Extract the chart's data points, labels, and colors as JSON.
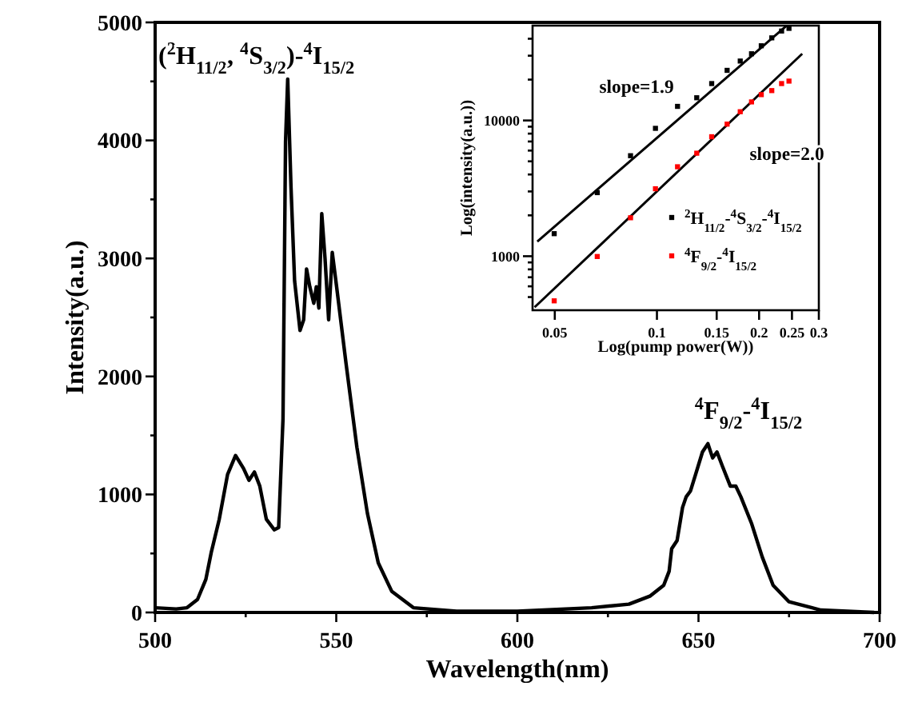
{
  "chart_data": [
    {
      "type": "line",
      "xlabel": "Wavelength(nm)",
      "ylabel": "Intensity(a.u.)",
      "xlim": [
        500,
        700
      ],
      "ylim": [
        0,
        5000
      ],
      "xticks": [
        500,
        {
          "value": 525,
          "label": null
        },
        550,
        {
          "value": 575,
          "label": null
        },
        600,
        {
          "value": 625,
          "label": null
        },
        650,
        {
          "value": 675,
          "label": null
        },
        700
      ],
      "yticks": [
        0,
        {
          "value": 500,
          "label": null
        },
        1000,
        {
          "value": 1500,
          "label": null
        },
        2000,
        {
          "value": 2500,
          "label": null
        },
        3000,
        {
          "value": 3500,
          "label": null
        },
        4000,
        {
          "value": 4500,
          "label": null
        },
        5000
      ],
      "grid": false,
      "legend": false,
      "line_style": "solid",
      "annotations": [
        "($^{2}$H$_{11/2}$, $^{4}$S$_{3/2}$)-$^{4}$I$_{15/2}$",
        "$^{4}$F$_{9/2}$-$^{4}$I$_{15/2}$"
      ],
      "series": [
        {
          "color": "#000000",
          "x": [
            500,
            505.8,
            508.8,
            511.7,
            514,
            515.5,
            517.7,
            520,
            522.2,
            524.4,
            525.9,
            527.4,
            528.9,
            530.7,
            532.9,
            534.1,
            535.3,
            536,
            536.6,
            537.5,
            538.5,
            540,
            541,
            541.8,
            542.7,
            543.8,
            544.5,
            545.2,
            546,
            546.9,
            547.9,
            548.9,
            550.1,
            552.7,
            555.7,
            558.6,
            561.6,
            565.3,
            571.3,
            583.2,
            600,
            620.5,
            630.8,
            636.7,
            640.4,
            641.9,
            642.6,
            644.1,
            645.6,
            646.6,
            647.8,
            649.2,
            651.1,
            652.6,
            653.9,
            655.1,
            656.6,
            658.8,
            660.3,
            661.7,
            664.7,
            667.6,
            670.6,
            675,
            683.8,
            698.5
          ],
          "values": [
            40,
            30,
            40,
            110,
            280,
            510,
            790,
            1170,
            1330,
            1220,
            1120,
            1190,
            1070,
            790,
            700,
            720,
            1640,
            3990,
            4520,
            3610,
            2810,
            2390,
            2480,
            2910,
            2760,
            2620,
            2760,
            2580,
            3380,
            3000,
            2480,
            3050,
            2760,
            2110,
            1400,
            840,
            420,
            180,
            40,
            10,
            10,
            40,
            70,
            140,
            230,
            350,
            540,
            610,
            890,
            980,
            1030,
            1170,
            1360,
            1430,
            1310,
            1360,
            1240,
            1070,
            1070,
            980,
            750,
            470,
            230,
            90,
            20,
            0
          ]
        }
      ]
    },
    {
      "type": "scatter",
      "xlabel": "Log(pump power(W))",
      "ylabel": "Log(intensity(a.u.))",
      "log": "xy",
      "xlim": [
        0.043,
        0.3
      ],
      "ylim": [
        400,
        50000
      ],
      "xticks": [
        0.05,
        0.1,
        0.15,
        0.2,
        0.25,
        0.3
      ],
      "yticks": [
        {
          "value": 500,
          "label": null
        },
        {
          "value": 600,
          "label": null
        },
        {
          "value": 700,
          "label": null
        },
        {
          "value": 800,
          "label": null
        },
        {
          "value": 900,
          "label": null
        },
        1000,
        {
          "value": 2000,
          "label": null
        },
        {
          "value": 3000,
          "label": null
        },
        {
          "value": 4000,
          "label": null
        },
        {
          "value": 5000,
          "label": null
        },
        {
          "value": 6000,
          "label": null
        },
        {
          "value": 7000,
          "label": null
        },
        {
          "value": 8000,
          "label": null
        },
        {
          "value": 9000,
          "label": null
        },
        10000,
        {
          "value": 20000,
          "label": null
        },
        {
          "value": 30000,
          "label": null
        },
        {
          "value": 40000,
          "label": null
        }
      ],
      "grid": false,
      "legend": "bottom right",
      "annotations": [
        "slope=1.9",
        "slope=2.0"
      ],
      "series": [
        {
          "name": "$^{2}$H$_{11/2}$-$^{4}$S$_{3/2}$-$^{4}$I$_{15/2}$",
          "marker": "square",
          "color": "#000000",
          "x": [
            0.0498,
            0.0667,
            0.0836,
            0.099,
            0.115,
            0.131,
            0.145,
            0.161,
            0.176,
            0.19,
            0.203,
            0.218,
            0.233,
            0.245
          ],
          "values": [
            1466,
            2940,
            5500,
            8750,
            12700,
            14700,
            18700,
            23400,
            27400,
            31000,
            35500,
            40600,
            45600,
            47700
          ]
        },
        {
          "name": "$^{4}$F$_{9/2}$-$^{4}$I$_{15/2}$",
          "marker": "square",
          "color": "#ff0000",
          "x": [
            0.0498,
            0.0667,
            0.0836,
            0.099,
            0.115,
            0.131,
            0.145,
            0.161,
            0.176,
            0.19,
            0.203,
            0.218,
            0.233,
            0.245
          ],
          "values": [
            469,
            995,
            1920,
            3140,
            4560,
            5740,
            7590,
            9400,
            11600,
            13700,
            15500,
            16600,
            18700,
            19500
          ]
        },
        {
          "type": "line",
          "color": "#000000",
          "x": [
            0.0444,
            0.241
          ],
          "values": [
            1283,
            49900
          ]
        },
        {
          "type": "line",
          "color": "#000000",
          "x": [
            0.0436,
            0.268
          ],
          "values": [
            421,
            31000
          ]
        }
      ]
    }
  ]
}
